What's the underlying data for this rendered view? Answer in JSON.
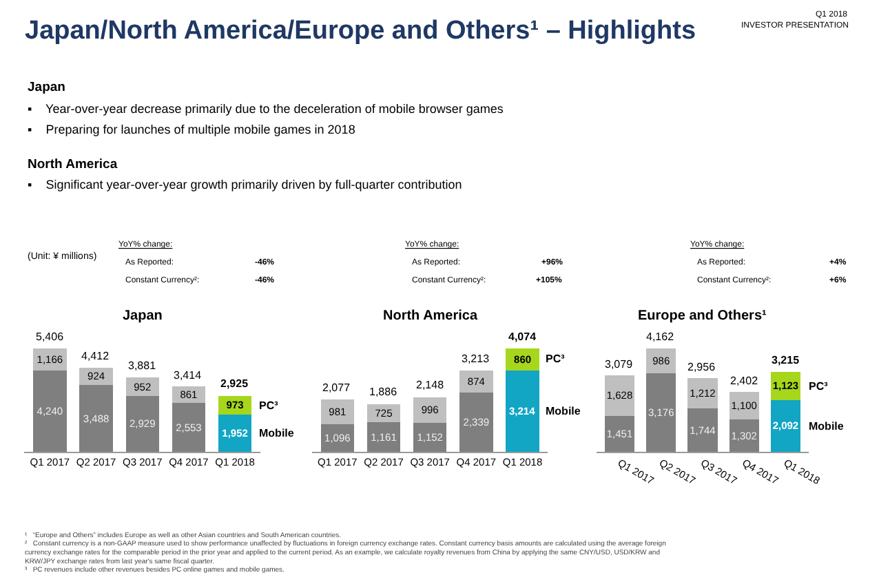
{
  "chart_data": [
    {
      "type": "other",
      "title": "Japan/North America/Europe and Others¹ – Highlights",
      "annotations": [
        "Q1 2018",
        "INVESTOR PRESENTATION",
        "Japan",
        "▪    Year-over-year decrease primarily due to the deceleration of mobile browser games",
        "▪    Preparing for launches of multiple mobile games in 2018",
        "North America",
        "▪    Significant year-over-year growth primarily driven by full-quarter contribution",
        "(Unit: ¥ millions)"
      ]
    },
    {
      "type": "bar",
      "stacked": true,
      "title": "Japan",
      "categories": [
        "Q1 2017",
        "Q2 2017",
        "Q3 2017",
        "Q4 2017",
        "Q1 2018"
      ],
      "series": [
        {
          "name": "Mobile",
          "colors": [
            "#7f7f7f",
            "#7f7f7f",
            "#7f7f7f",
            "#7f7f7f",
            "#12a5c4"
          ],
          "values": [
            4240,
            3488,
            2929,
            2553,
            1952
          ],
          "value_labels": [
            "4,240",
            "3,488",
            "2,929",
            "2,553",
            "1,952"
          ]
        },
        {
          "name": "PC³",
          "colors": [
            "#bfbfbf",
            "#bfbfbf",
            "#bfbfbf",
            "#bfbfbf",
            "#a6d71c"
          ],
          "values": [
            1166,
            924,
            952,
            861,
            973
          ],
          "value_labels": [
            "1,166",
            "924",
            "952",
            "861",
            "973"
          ]
        }
      ],
      "totals": [
        "5,406",
        "4,412",
        "3,881",
        "3,414",
        "2,925"
      ],
      "annotations": [
        "YoY% change:",
        "As Reported:",
        "-46%",
        "Constant Currency²:",
        "-46%"
      ]
    },
    {
      "type": "bar",
      "stacked": true,
      "title": "North America",
      "categories": [
        "Q1 2017",
        "Q2 2017",
        "Q3 2017",
        "Q4 2017",
        "Q1 2018"
      ],
      "series": [
        {
          "name": "Mobile",
          "colors": [
            "#7f7f7f",
            "#7f7f7f",
            "#7f7f7f",
            "#7f7f7f",
            "#12a5c4"
          ],
          "values": [
            1096,
            1161,
            1152,
            2339,
            3214
          ],
          "value_labels": [
            "1,096",
            "1,161",
            "1,152",
            "2,339",
            "3,214"
          ]
        },
        {
          "name": "PC³",
          "colors": [
            "#bfbfbf",
            "#bfbfbf",
            "#bfbfbf",
            "#bfbfbf",
            "#a6d71c"
          ],
          "values": [
            981,
            725,
            996,
            874,
            860
          ],
          "value_labels": [
            "981",
            "725",
            "996",
            "874",
            "860"
          ]
        }
      ],
      "totals": [
        "2,077",
        "1,886",
        "2,148",
        "3,213",
        "4,074"
      ],
      "annotations": [
        "YoY% change:",
        "As Reported:",
        "+96%",
        "Constant Currency²:",
        "+105%"
      ]
    },
    {
      "type": "bar",
      "stacked": true,
      "title": "Europe and Others¹",
      "categories": [
        "Q1 2017",
        "Q2 2017",
        "Q3 2017",
        "Q4 2017",
        "Q1 2018"
      ],
      "series": [
        {
          "name": "Mobile",
          "colors": [
            "#7f7f7f",
            "#7f7f7f",
            "#7f7f7f",
            "#7f7f7f",
            "#12a5c4"
          ],
          "values": [
            1451,
            3176,
            1744,
            1302,
            2092
          ],
          "value_labels": [
            "1,451",
            "3,176",
            "1,744",
            "1,302",
            "2,092"
          ]
        },
        {
          "name": "PC³",
          "colors": [
            "#bfbfbf",
            "#bfbfbf",
            "#bfbfbf",
            "#bfbfbf",
            "#a6d71c"
          ],
          "values": [
            1628,
            986,
            1212,
            1100,
            1123
          ],
          "value_labels": [
            "1,628",
            "986",
            "1,212",
            "1,100",
            "1,123"
          ]
        }
      ],
      "totals": [
        "3,079",
        "4,162",
        "2,956",
        "2,402",
        "3,215"
      ],
      "annotations": [
        "YoY% change:",
        "As Reported:",
        "+4%",
        "Constant Currency²:",
        "+6%"
      ]
    },
    {
      "type": "other",
      "annotations": [
        "¹   “Europe and Others” includes Europe as well as other Asian countries and South American countries.",
        "²   Constant currency is a non-GAAP measure used to show performance unaffected by fluctuations in foreign currency exchange rates. Constant currency basis amounts are calculated using the average foreign currency exchange rates for the comparable period in the prior year and applied to the current period. As an example, we calculate royalty revenues from China by applying the same CNY/USD, USD/KRW and KRW/JPY exchange rates from last year's same fiscal quarter.",
        "³   PC revenues include other revenues besides PC online games and mobile games."
      ]
    }
  ]
}
